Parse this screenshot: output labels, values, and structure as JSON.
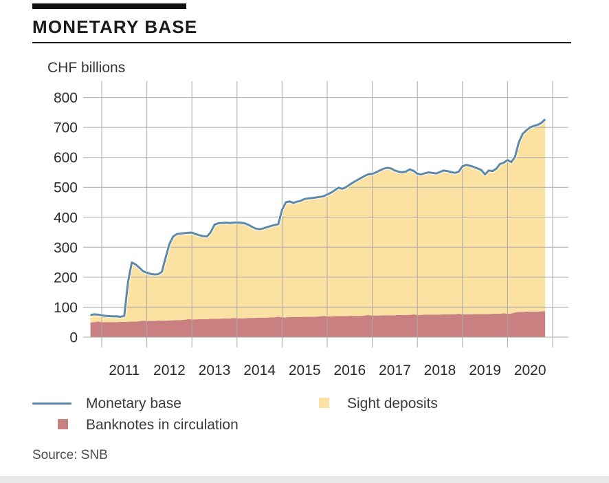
{
  "header": {
    "title": "MONETARY BASE"
  },
  "source": {
    "label": "Source: SNB"
  },
  "legend": {
    "position": "bottom",
    "items": [
      {
        "label": "Monetary base",
        "swatch": "line",
        "color": "#5e89a6"
      },
      {
        "label": "Banknotes in circulation",
        "swatch": "square",
        "color": "#c98080"
      },
      {
        "label": "Sight deposits",
        "swatch": "square",
        "color": "#fbe2a3"
      }
    ]
  },
  "chart_data": {
    "type": "area",
    "title": "MONETARY BASE",
    "unit_label": "CHF billions",
    "grid": true,
    "y_axis": {
      "min": 0,
      "max": 800,
      "tick_step": 100,
      "tick_labels": [
        "0",
        "100",
        "200",
        "300",
        "400",
        "500",
        "600",
        "700",
        "800"
      ]
    },
    "x_year_gridlines": [
      2011,
      2012,
      2013,
      2014,
      2015,
      2016,
      2017,
      2018,
      2019,
      2020,
      2021
    ],
    "x_year_labels": [
      "2011",
      "2012",
      "2013",
      "2014",
      "2015",
      "2016",
      "2017",
      "2018",
      "2019",
      "2020"
    ],
    "x_start_year": 2010.75,
    "x_step_years": 0.0833333,
    "colors": {
      "line": "#5e89a6",
      "sight_deposits": "#fbe2a3",
      "banknotes": "#c98080",
      "gridline": "#a9a9a9"
    },
    "series": [
      {
        "id": "monetary_base",
        "name": "Monetary base",
        "style": "line",
        "color": "#5e89a6",
        "values": [
          74,
          76,
          75,
          73,
          71,
          70,
          69,
          69,
          68,
          71,
          185,
          249,
          243,
          232,
          220,
          215,
          211,
          209,
          210,
          218,
          265,
          310,
          336,
          344,
          346,
          347,
          348,
          349,
          344,
          340,
          337,
          336,
          350,
          375,
          380,
          381,
          382,
          381,
          382,
          383,
          382,
          380,
          375,
          368,
          362,
          360,
          363,
          367,
          371,
          374,
          377,
          425,
          450,
          453,
          448,
          452,
          455,
          461,
          463,
          464,
          466,
          468,
          470,
          476,
          482,
          490,
          499,
          495,
          500,
          509,
          517,
          524,
          531,
          538,
          544,
          545,
          550,
          556,
          562,
          565,
          563,
          556,
          552,
          550,
          553,
          560,
          555,
          545,
          543,
          547,
          550,
          548,
          546,
          551,
          556,
          554,
          551,
          548,
          552,
          570,
          575,
          572,
          568,
          563,
          558,
          543,
          556,
          554,
          562,
          578,
          582,
          591,
          584,
          602,
          650,
          678,
          690,
          700,
          705,
          708,
          715,
          727
        ]
      },
      {
        "id": "banknotes",
        "name": "Banknotes in circulation",
        "style": "area",
        "color": "#c98080",
        "values": [
          49,
          50,
          52,
          50,
          50,
          50,
          50,
          50,
          51,
          51,
          51,
          52,
          52,
          53,
          55,
          54,
          54,
          54,
          55,
          55,
          55,
          56,
          56,
          57,
          57,
          58,
          60,
          59,
          59,
          60,
          60,
          60,
          61,
          61,
          61,
          62,
          62,
          62,
          64,
          63,
          63,
          63,
          64,
          64,
          64,
          65,
          65,
          65,
          66,
          66,
          68,
          66,
          66,
          67,
          67,
          67,
          67,
          68,
          68,
          68,
          68,
          69,
          71,
          69,
          69,
          70,
          70,
          70,
          70,
          71,
          71,
          71,
          71,
          72,
          74,
          72,
          72,
          72,
          73,
          73,
          73,
          73,
          74,
          74,
          74,
          74,
          76,
          74,
          74,
          75,
          75,
          75,
          75,
          75,
          76,
          76,
          76,
          76,
          78,
          76,
          76,
          76,
          77,
          77,
          77,
          77,
          77,
          78,
          78,
          78,
          80,
          78,
          79,
          82,
          84,
          84,
          85,
          85,
          85,
          85,
          86,
          86
        ]
      },
      {
        "id": "sight_deposits",
        "name": "Sight deposits",
        "style": "area",
        "color": "#fbe2a3",
        "stacked_on": "banknotes",
        "values": [
          25,
          26,
          23,
          23,
          21,
          20,
          19,
          19,
          17,
          20,
          134,
          197,
          191,
          179,
          165,
          161,
          157,
          155,
          155,
          163,
          210,
          254,
          280,
          287,
          289,
          289,
          288,
          290,
          285,
          280,
          277,
          276,
          289,
          314,
          319,
          319,
          320,
          319,
          318,
          320,
          319,
          317,
          311,
          304,
          298,
          295,
          298,
          302,
          305,
          308,
          309,
          359,
          384,
          386,
          381,
          385,
          388,
          393,
          395,
          396,
          398,
          399,
          399,
          407,
          413,
          420,
          429,
          425,
          430,
          438,
          446,
          453,
          460,
          466,
          470,
          473,
          478,
          484,
          489,
          492,
          490,
          483,
          478,
          476,
          479,
          486,
          479,
          471,
          469,
          472,
          475,
          473,
          471,
          476,
          480,
          478,
          475,
          472,
          474,
          494,
          499,
          496,
          491,
          486,
          481,
          466,
          479,
          476,
          484,
          500,
          502,
          513,
          505,
          520,
          566,
          594,
          605,
          615,
          620,
          623,
          629,
          641
        ]
      }
    ]
  }
}
